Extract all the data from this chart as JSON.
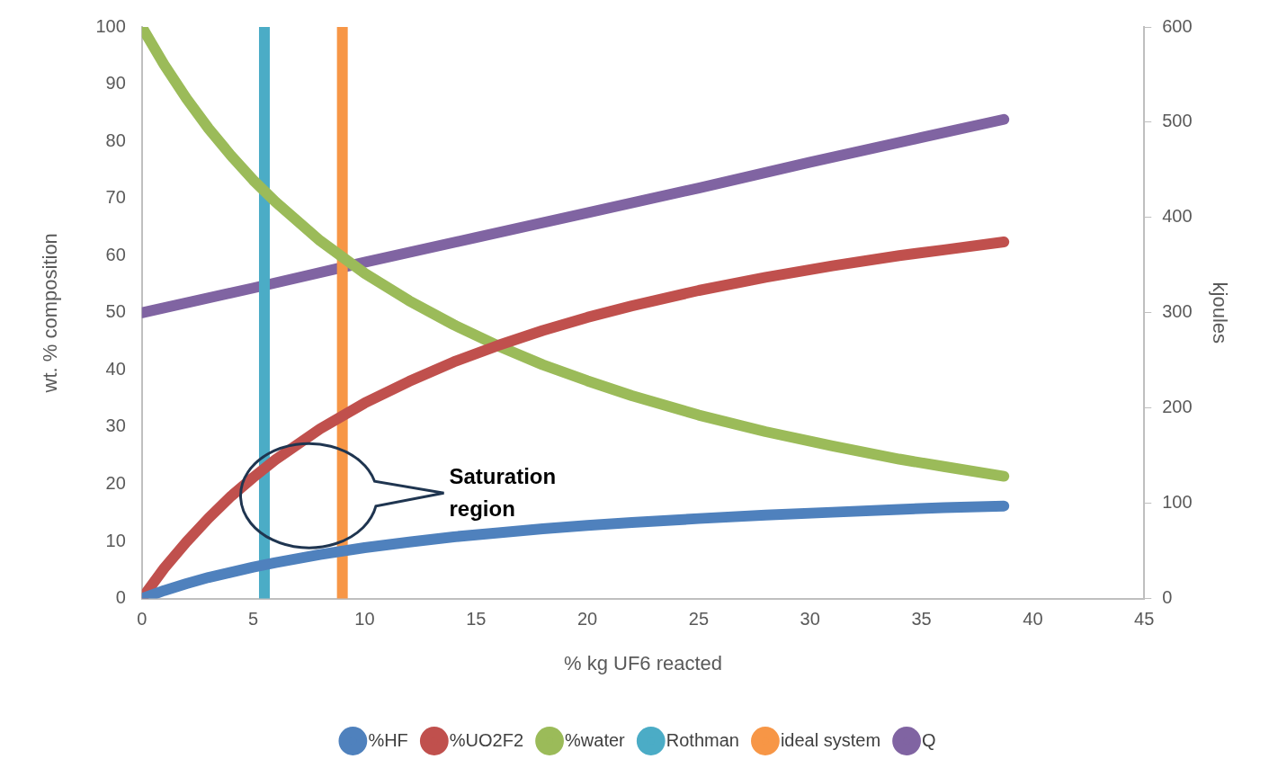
{
  "chart_data": {
    "type": "line",
    "xlabel": "% kg UF6 reacted",
    "ylabel": "wt. % composition",
    "y2label": "kjoules",
    "xlim": [
      0,
      45
    ],
    "xticks": [
      0,
      5,
      10,
      15,
      20,
      25,
      30,
      35,
      40,
      45
    ],
    "ylim": [
      0,
      100
    ],
    "yticks": [
      0,
      10,
      20,
      30,
      40,
      50,
      60,
      70,
      80,
      90,
      100
    ],
    "y2lim": [
      0,
      600
    ],
    "y2ticks": [
      0,
      100,
      200,
      300,
      400,
      500,
      600
    ],
    "grid": false,
    "legend": "bottom",
    "line_style": "solid",
    "annotations": [
      "Saturation region"
    ],
    "series": [
      {
        "name": "%HF",
        "color": "#4f81bd",
        "x": [
          0,
          1,
          2,
          3,
          4,
          5,
          6,
          8,
          10,
          12,
          14,
          16,
          18,
          20,
          22,
          25,
          28,
          31,
          34,
          36,
          38.7
        ],
        "values": [
          0,
          1.4,
          2.6,
          3.7,
          4.6,
          5.5,
          6.3,
          7.7,
          8.9,
          9.9,
          10.8,
          11.5,
          12.2,
          12.8,
          13.3,
          14.0,
          14.6,
          15.1,
          15.6,
          15.9,
          16.2
        ]
      },
      {
        "name": "%UO2F2",
        "color": "#c0504d",
        "x": [
          0,
          1,
          2,
          3,
          4,
          5,
          6,
          8,
          10,
          12,
          14,
          16,
          18,
          20,
          22,
          25,
          28,
          31,
          34,
          36,
          38.7
        ],
        "values": [
          0,
          5.3,
          9.9,
          14.1,
          17.9,
          21.2,
          24.3,
          29.7,
          34.2,
          38.0,
          41.4,
          44.3,
          46.9,
          49.2,
          51.2,
          53.9,
          56.2,
          58.2,
          60.0,
          61.0,
          62.4
        ]
      },
      {
        "name": "%water",
        "color": "#9bbb59",
        "x": [
          0,
          1,
          2,
          3,
          4,
          5,
          6,
          8,
          10,
          12,
          14,
          16,
          18,
          20,
          22,
          25,
          28,
          31,
          34,
          36,
          38.7
        ],
        "values": [
          100,
          93.4,
          87.5,
          82.2,
          77.5,
          73.2,
          69.4,
          62.6,
          56.9,
          52.1,
          47.9,
          44.2,
          40.9,
          38.1,
          35.5,
          32.1,
          29.2,
          26.7,
          24.4,
          23.1,
          21.4
        ]
      },
      {
        "name": "Rothman",
        "color": "#4bacc6",
        "x": [
          5.5,
          5.5,
          5.5,
          5.5,
          5.5,
          5.5,
          5.5,
          5.5,
          5.5,
          5.5,
          5.5
        ],
        "values": [
          0,
          10,
          20,
          30,
          40,
          50,
          60,
          70,
          80,
          90,
          100
        ]
      },
      {
        "name": "ideal system",
        "color": "#f79646",
        "x": [
          9,
          9,
          9,
          9,
          9,
          9,
          9,
          9,
          9,
          9,
          9
        ],
        "values": [
          0,
          10,
          20,
          30,
          40,
          50,
          60,
          70,
          80,
          90,
          100
        ]
      },
      {
        "name": "Q",
        "color": "#8064a2",
        "axis": "y2",
        "x": [
          0,
          5,
          10,
          15,
          20,
          25,
          30,
          35,
          38.7
        ],
        "values": [
          300,
          326,
          353,
          379,
          405,
          431,
          458,
          484,
          503
        ]
      }
    ]
  }
}
